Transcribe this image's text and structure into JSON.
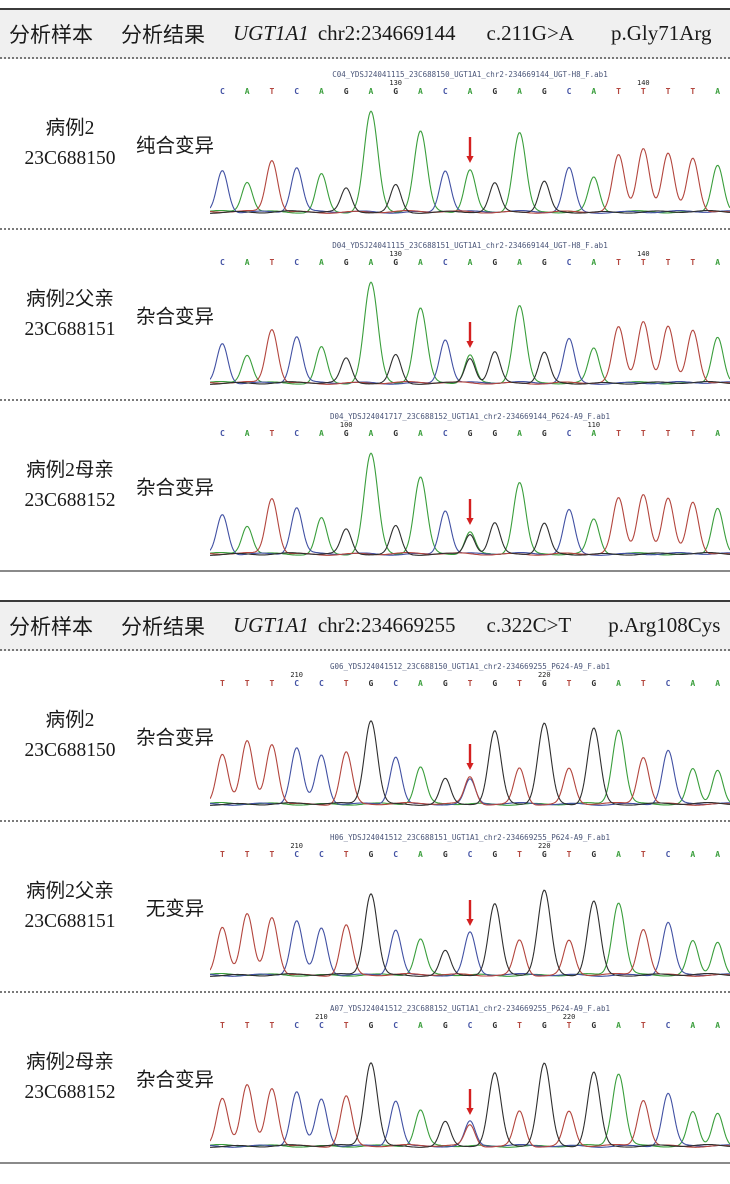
{
  "figure": {
    "colors": {
      "base_A": "#3a9e3c",
      "base_C": "#4251a3",
      "base_G": "#2f2f2f",
      "base_T": "#b3463e",
      "arrow": "#d42020",
      "trace_title": "#4a5578",
      "header_bg": "#f0f0f0"
    },
    "sections": [
      {
        "header": {
          "sample_col": "分析样本",
          "result_col": "分析结果",
          "gene": "UGT1A1",
          "locus": "chr2:234669144",
          "cdna_change": "c.211G>A",
          "protein_change": "p.Gly71Arg"
        },
        "rows": [
          {
            "sample_name": "病例2",
            "sample_id": "23C688150",
            "result": "纯合变异",
            "trace_title": "C04_YDSJ24041115_23C688150_UGT1A1_chr2-234669144_UGT-H8_F.ab1",
            "arrow_index": 11,
            "pos_labels": [
              {
                "index": 8,
                "label": "130"
              },
              {
                "index": 18,
                "label": "140"
              }
            ],
            "peaks": [
              {
                "base": "C",
                "h": 0.42
              },
              {
                "base": "A",
                "h": 0.3
              },
              {
                "base": "T",
                "h": 0.52
              },
              {
                "base": "C",
                "h": 0.44
              },
              {
                "base": "A",
                "h": 0.38
              },
              {
                "base": "G",
                "h": 0.23
              },
              {
                "base": "A",
                "h": 1.0
              },
              {
                "base": "G",
                "h": 0.27
              },
              {
                "base": "A",
                "h": 0.8
              },
              {
                "base": "C",
                "h": 0.42
              },
              {
                "base": "A",
                "h": 0.42
              },
              {
                "base": "G",
                "h": 0.28
              },
              {
                "base": "A",
                "h": 0.8
              },
              {
                "base": "G",
                "h": 0.3
              },
              {
                "base": "C",
                "h": 0.44
              },
              {
                "base": "A",
                "h": 0.34
              },
              {
                "base": "T",
                "h": 0.56
              },
              {
                "base": "T",
                "h": 0.64
              },
              {
                "base": "T",
                "h": 0.58
              },
              {
                "base": "T",
                "h": 0.55
              },
              {
                "base": "A",
                "h": 0.48
              }
            ]
          },
          {
            "sample_name": "病例2父亲",
            "sample_id": "23C688151",
            "result": "杂合变异",
            "trace_title": "D04_YDSJ24041115_23C688151_UGT1A1_chr2-234669144_UGT-H8_F.ab1",
            "arrow_index": 11,
            "pos_labels": [
              {
                "index": 8,
                "label": "130"
              },
              {
                "index": 18,
                "label": "140"
              }
            ],
            "peaks": [
              {
                "base": "C",
                "h": 0.4
              },
              {
                "base": "A",
                "h": 0.28
              },
              {
                "base": "T",
                "h": 0.54
              },
              {
                "base": "C",
                "h": 0.46
              },
              {
                "base": "A",
                "h": 0.36
              },
              {
                "base": "G",
                "h": 0.24
              },
              {
                "base": "A",
                "h": 1.0
              },
              {
                "base": "G",
                "h": 0.28
              },
              {
                "base": "A",
                "h": 0.74
              },
              {
                "base": "C",
                "h": 0.44
              },
              {
                "base": "A",
                "h": 0.28,
                "base2": "G",
                "h2": 0.25
              },
              {
                "base": "G",
                "h": 0.3
              },
              {
                "base": "A",
                "h": 0.78
              },
              {
                "base": "G",
                "h": 0.3
              },
              {
                "base": "C",
                "h": 0.44
              },
              {
                "base": "A",
                "h": 0.34
              },
              {
                "base": "T",
                "h": 0.55
              },
              {
                "base": "T",
                "h": 0.62
              },
              {
                "base": "T",
                "h": 0.56
              },
              {
                "base": "T",
                "h": 0.54
              },
              {
                "base": "A",
                "h": 0.47
              }
            ]
          },
          {
            "sample_name": "病例2母亲",
            "sample_id": "23C688152",
            "result": "杂合变异",
            "trace_title": "D04_YDSJ24041717_23C688152_UGT1A1_chr2-234669144_P624-A9_F.ab1",
            "arrow_index": 11,
            "pos_labels": [
              {
                "index": 6,
                "label": "100"
              },
              {
                "index": 16,
                "label": "110"
              }
            ],
            "peaks": [
              {
                "base": "C",
                "h": 0.4
              },
              {
                "base": "A",
                "h": 0.28
              },
              {
                "base": "T",
                "h": 0.56
              },
              {
                "base": "C",
                "h": 0.46
              },
              {
                "base": "A",
                "h": 0.36
              },
              {
                "base": "G",
                "h": 0.24
              },
              {
                "base": "A",
                "h": 1.0
              },
              {
                "base": "G",
                "h": 0.28
              },
              {
                "base": "A",
                "h": 0.76
              },
              {
                "base": "C",
                "h": 0.44
              },
              {
                "base": "G",
                "h": 0.2,
                "base2": "A",
                "h2": 0.22
              },
              {
                "base": "G",
                "h": 0.3
              },
              {
                "base": "A",
                "h": 0.72
              },
              {
                "base": "G",
                "h": 0.3
              },
              {
                "base": "C",
                "h": 0.44
              },
              {
                "base": "A",
                "h": 0.34
              },
              {
                "base": "T",
                "h": 0.55
              },
              {
                "base": "T",
                "h": 0.6
              },
              {
                "base": "T",
                "h": 0.55
              },
              {
                "base": "T",
                "h": 0.53
              },
              {
                "base": "A",
                "h": 0.47
              }
            ]
          }
        ]
      },
      {
        "header": {
          "sample_col": "分析样本",
          "result_col": "分析结果",
          "gene": "UGT1A1",
          "locus": "chr2:234669255",
          "cdna_change": "c.322C>T",
          "protein_change": "p.Arg108Cys"
        },
        "rows": [
          {
            "sample_name": "病例2",
            "sample_id": "23C688150",
            "result": "杂合变异",
            "trace_title": "G06_YDSJ24041512_23C688150_UGT1A1_chr2-234669255_P624-A9_F.ab1",
            "arrow_index": 11,
            "pos_labels": [
              {
                "index": 4,
                "label": "210"
              },
              {
                "index": 14,
                "label": "220"
              }
            ],
            "peaks": [
              {
                "base": "T",
                "h": 0.5
              },
              {
                "base": "T",
                "h": 0.62
              },
              {
                "base": "T",
                "h": 0.6
              },
              {
                "base": "C",
                "h": 0.56
              },
              {
                "base": "C",
                "h": 0.48
              },
              {
                "base": "T",
                "h": 0.52
              },
              {
                "base": "G",
                "h": 0.84
              },
              {
                "base": "C",
                "h": 0.48
              },
              {
                "base": "A",
                "h": 0.36
              },
              {
                "base": "G",
                "h": 0.25
              },
              {
                "base": "T",
                "h": 0.27,
                "base2": "C",
                "h2": 0.24
              },
              {
                "base": "G",
                "h": 0.72
              },
              {
                "base": "T",
                "h": 0.36
              },
              {
                "base": "G",
                "h": 0.8
              },
              {
                "base": "T",
                "h": 0.35
              },
              {
                "base": "G",
                "h": 0.76
              },
              {
                "base": "A",
                "h": 0.74
              },
              {
                "base": "T",
                "h": 0.47
              },
              {
                "base": "C",
                "h": 0.53
              },
              {
                "base": "A",
                "h": 0.35
              },
              {
                "base": "A",
                "h": 0.35
              }
            ]
          },
          {
            "sample_name": "病例2父亲",
            "sample_id": "23C688151",
            "result": "无变异",
            "trace_title": "H06_YDSJ24041512_23C688151_UGT1A1_chr2-234669255_P624-A9_F.ab1",
            "arrow_index": 11,
            "pos_labels": [
              {
                "index": 4,
                "label": "210"
              },
              {
                "index": 14,
                "label": "220"
              }
            ],
            "peaks": [
              {
                "base": "T",
                "h": 0.48
              },
              {
                "base": "T",
                "h": 0.6
              },
              {
                "base": "T",
                "h": 0.58
              },
              {
                "base": "C",
                "h": 0.54
              },
              {
                "base": "C",
                "h": 0.46
              },
              {
                "base": "T",
                "h": 0.5
              },
              {
                "base": "G",
                "h": 0.82
              },
              {
                "base": "C",
                "h": 0.46
              },
              {
                "base": "A",
                "h": 0.35
              },
              {
                "base": "G",
                "h": 0.24
              },
              {
                "base": "C",
                "h": 0.42
              },
              {
                "base": "G",
                "h": 0.7
              },
              {
                "base": "T",
                "h": 0.35
              },
              {
                "base": "G",
                "h": 0.84
              },
              {
                "base": "T",
                "h": 0.34
              },
              {
                "base": "G",
                "h": 0.74
              },
              {
                "base": "A",
                "h": 0.72
              },
              {
                "base": "T",
                "h": 0.46
              },
              {
                "base": "C",
                "h": 0.52
              },
              {
                "base": "A",
                "h": 0.34
              },
              {
                "base": "A",
                "h": 0.34
              }
            ]
          },
          {
            "sample_name": "病例2母亲",
            "sample_id": "23C688152",
            "result": "杂合变异",
            "trace_title": "A07_YDSJ24041512_23C688152_UGT1A1_chr2-234669255_P624-A9_F.ab1",
            "arrow_index": 11,
            "pos_labels": [
              {
                "index": 5,
                "label": "210"
              },
              {
                "index": 15,
                "label": "220"
              }
            ],
            "peaks": [
              {
                "base": "T",
                "h": 0.48
              },
              {
                "base": "T",
                "h": 0.6
              },
              {
                "base": "T",
                "h": 0.58
              },
              {
                "base": "C",
                "h": 0.54
              },
              {
                "base": "C",
                "h": 0.46
              },
              {
                "base": "T",
                "h": 0.5
              },
              {
                "base": "G",
                "h": 0.84
              },
              {
                "base": "C",
                "h": 0.46
              },
              {
                "base": "A",
                "h": 0.35
              },
              {
                "base": "G",
                "h": 0.24
              },
              {
                "base": "C",
                "h": 0.24,
                "base2": "T",
                "h2": 0.21
              },
              {
                "base": "G",
                "h": 0.72
              },
              {
                "base": "T",
                "h": 0.35
              },
              {
                "base": "G",
                "h": 0.82
              },
              {
                "base": "T",
                "h": 0.34
              },
              {
                "base": "G",
                "h": 0.74
              },
              {
                "base": "A",
                "h": 0.72
              },
              {
                "base": "T",
                "h": 0.46
              },
              {
                "base": "C",
                "h": 0.52
              },
              {
                "base": "A",
                "h": 0.34
              },
              {
                "base": "A",
                "h": 0.34
              }
            ]
          }
        ]
      }
    ]
  }
}
